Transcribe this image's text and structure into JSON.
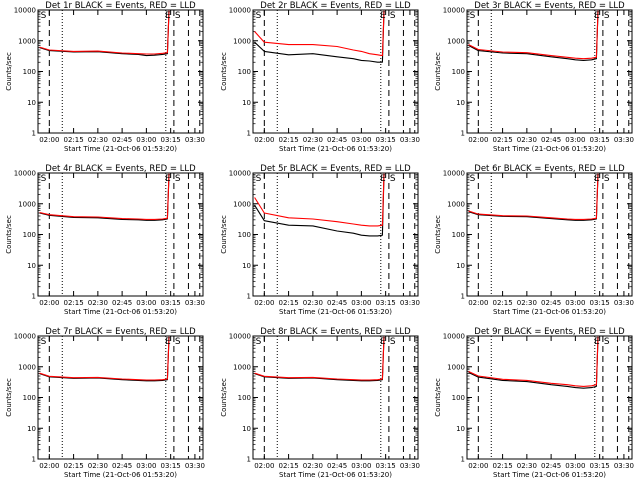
{
  "colors": {
    "events": "#000000",
    "lld": "#ff0000",
    "axes": "#000000",
    "background": "#ffffff"
  },
  "x_ticks": [
    "02:00",
    "02:15",
    "02:30",
    "02:45",
    "03:00",
    "03:15",
    "03:30"
  ],
  "y_ticks": [
    "1",
    "10",
    "100",
    "1000",
    "10000"
  ],
  "ylabel": "Counts/sec",
  "xlabel": "Start Time (21-Oct-06 01:53:20)",
  "markers": {
    "start": "S",
    "end": "E"
  },
  "chart_data": [
    {
      "type": "line",
      "title": "Det 1r BLACK = Events, RED = LLD",
      "xlabel": "Start Time (21-Oct-06 01:53:20)",
      "ylabel": "Counts/sec",
      "y_scale": "log",
      "ylim": [
        1,
        10000
      ],
      "xlim": [
        "01:53",
        "03:35"
      ],
      "x": [
        "01:54",
        "02:00",
        "02:15",
        "02:30",
        "02:45",
        "02:55",
        "03:00",
        "03:05",
        "03:10",
        "03:13",
        "03:14"
      ],
      "series": [
        {
          "name": "Events",
          "color": "#000000",
          "values": [
            600,
            480,
            430,
            440,
            380,
            360,
            330,
            340,
            360,
            380,
            9000
          ]
        },
        {
          "name": "LLD",
          "color": "#ff0000",
          "values": [
            620,
            500,
            450,
            460,
            400,
            380,
            370,
            370,
            390,
            410,
            9500
          ]
        }
      ],
      "vlines_dashed": [
        "01:53",
        "02:00",
        "03:17",
        "03:26",
        "03:33"
      ],
      "vlines_dotted": [
        "02:08",
        "03:12"
      ],
      "markers": [
        {
          "label": "S",
          "x": "03:17"
        },
        {
          "label": "E",
          "x": "03:15"
        },
        {
          "label": "S",
          "x": "01:54"
        }
      ]
    },
    {
      "type": "line",
      "title": "Det 2r BLACK = Events, RED = LLD",
      "xlabel": "Start Time (21-Oct-06 01:53:20)",
      "ylabel": "Counts/sec",
      "y_scale": "log",
      "ylim": [
        1,
        10000
      ],
      "xlim": [
        "01:53",
        "03:35"
      ],
      "x": [
        "01:54",
        "02:00",
        "02:15",
        "02:30",
        "02:45",
        "02:55",
        "03:00",
        "03:05",
        "03:10",
        "03:13",
        "03:14"
      ],
      "series": [
        {
          "name": "Events",
          "color": "#000000",
          "values": [
            900,
            450,
            350,
            380,
            300,
            260,
            230,
            220,
            200,
            200,
            9000
          ]
        },
        {
          "name": "LLD",
          "color": "#ff0000",
          "values": [
            2000,
            900,
            750,
            750,
            650,
            500,
            450,
            380,
            350,
            330,
            9500
          ]
        }
      ],
      "vlines_dashed": [
        "01:53",
        "02:00",
        "03:17",
        "03:26",
        "03:33"
      ],
      "vlines_dotted": [
        "02:08",
        "03:12"
      ],
      "markers": [
        {
          "label": "S",
          "x": "03:17"
        },
        {
          "label": "E",
          "x": "03:15"
        },
        {
          "label": "S",
          "x": "01:54"
        }
      ]
    },
    {
      "type": "line",
      "title": "Det 3r BLACK = Events, RED = LLD",
      "xlabel": "Start Time (21-Oct-06 01:53:20)",
      "ylabel": "Counts/sec",
      "y_scale": "log",
      "ylim": [
        1,
        10000
      ],
      "xlim": [
        "01:53",
        "03:35"
      ],
      "x": [
        "01:54",
        "02:00",
        "02:15",
        "02:30",
        "02:45",
        "02:55",
        "03:00",
        "03:05",
        "03:10",
        "03:13",
        "03:14"
      ],
      "series": [
        {
          "name": "Events",
          "color": "#000000",
          "values": [
            700,
            480,
            400,
            380,
            300,
            260,
            240,
            230,
            240,
            260,
            9000
          ]
        },
        {
          "name": "LLD",
          "color": "#ff0000",
          "values": [
            750,
            520,
            430,
            410,
            330,
            290,
            270,
            260,
            270,
            290,
            9500
          ]
        }
      ],
      "vlines_dashed": [
        "01:53",
        "02:00",
        "03:17",
        "03:26",
        "03:33"
      ],
      "vlines_dotted": [
        "02:08",
        "03:12"
      ],
      "markers": [
        {
          "label": "S",
          "x": "03:17"
        },
        {
          "label": "E",
          "x": "03:15"
        },
        {
          "label": "S",
          "x": "01:54"
        }
      ]
    },
    {
      "type": "line",
      "title": "Det 4r BLACK = Events, RED = LLD",
      "xlabel": "Start Time (21-Oct-06 01:53:20)",
      "ylabel": "Counts/sec",
      "y_scale": "log",
      "ylim": [
        1,
        10000
      ],
      "xlim": [
        "01:53",
        "03:35"
      ],
      "x": [
        "01:54",
        "02:00",
        "02:15",
        "02:30",
        "02:45",
        "02:55",
        "03:00",
        "03:05",
        "03:10",
        "03:13",
        "03:14"
      ],
      "series": [
        {
          "name": "Events",
          "color": "#000000",
          "values": [
            500,
            420,
            360,
            350,
            310,
            300,
            290,
            290,
            300,
            320,
            9000
          ]
        },
        {
          "name": "LLD",
          "color": "#ff0000",
          "values": [
            520,
            440,
            380,
            370,
            330,
            320,
            310,
            310,
            320,
            340,
            9500
          ]
        }
      ],
      "vlines_dashed": [
        "01:53",
        "02:00",
        "03:17",
        "03:26",
        "03:33"
      ],
      "vlines_dotted": [
        "02:08",
        "03:12"
      ],
      "markers": [
        {
          "label": "S",
          "x": "03:17"
        },
        {
          "label": "E",
          "x": "03:15"
        },
        {
          "label": "S",
          "x": "01:54"
        }
      ]
    },
    {
      "type": "line",
      "title": "Det 5r BLACK = Events, RED = LLD",
      "xlabel": "Start Time (21-Oct-06 01:53:20)",
      "ylabel": "Counts/sec",
      "y_scale": "log",
      "ylim": [
        1,
        10000
      ],
      "xlim": [
        "01:53",
        "03:35"
      ],
      "x": [
        "01:54",
        "02:00",
        "02:15",
        "02:30",
        "02:45",
        "02:55",
        "03:00",
        "03:05",
        "03:10",
        "03:13",
        "03:14"
      ],
      "series": [
        {
          "name": "Events",
          "color": "#000000",
          "values": [
            900,
            280,
            200,
            190,
            130,
            110,
            95,
            90,
            90,
            95,
            9000
          ]
        },
        {
          "name": "LLD",
          "color": "#ff0000",
          "values": [
            1600,
            500,
            350,
            320,
            260,
            220,
            200,
            190,
            190,
            200,
            9500
          ]
        }
      ],
      "vlines_dashed": [
        "01:53",
        "02:00",
        "03:17",
        "03:26",
        "03:33"
      ],
      "vlines_dotted": [
        "02:08",
        "03:12"
      ],
      "markers": [
        {
          "label": "S",
          "x": "03:17"
        },
        {
          "label": "E",
          "x": "03:15"
        },
        {
          "label": "S",
          "x": "01:54"
        }
      ]
    },
    {
      "type": "line",
      "title": "Det 6r BLACK = Events, RED = LLD",
      "xlabel": "Start Time (21-Oct-06 01:53:20)",
      "ylabel": "Counts/sec",
      "y_scale": "log",
      "ylim": [
        1,
        10000
      ],
      "xlim": [
        "01:53",
        "03:35"
      ],
      "x": [
        "01:54",
        "02:00",
        "02:15",
        "02:30",
        "02:45",
        "02:55",
        "03:00",
        "03:05",
        "03:10",
        "03:13",
        "03:14"
      ],
      "series": [
        {
          "name": "Events",
          "color": "#000000",
          "values": [
            550,
            440,
            390,
            380,
            330,
            300,
            290,
            290,
            300,
            320,
            9000
          ]
        },
        {
          "name": "LLD",
          "color": "#ff0000",
          "values": [
            580,
            460,
            410,
            400,
            350,
            320,
            310,
            310,
            320,
            340,
            9500
          ]
        }
      ],
      "vlines_dashed": [
        "01:53",
        "02:00",
        "03:17",
        "03:26",
        "03:33"
      ],
      "vlines_dotted": [
        "02:08",
        "03:12"
      ],
      "markers": [
        {
          "label": "S",
          "x": "03:17"
        },
        {
          "label": "E",
          "x": "03:15"
        },
        {
          "label": "S",
          "x": "01:54"
        }
      ]
    },
    {
      "type": "line",
      "title": "Det 7r BLACK = Events, RED = LLD",
      "xlabel": "Start Time (21-Oct-06 01:53:20)",
      "ylabel": "Counts/sec",
      "y_scale": "log",
      "ylim": [
        1,
        10000
      ],
      "xlim": [
        "01:53",
        "03:35"
      ],
      "x": [
        "01:54",
        "02:00",
        "02:15",
        "02:30",
        "02:45",
        "02:55",
        "03:00",
        "03:05",
        "03:10",
        "03:13",
        "03:14"
      ],
      "series": [
        {
          "name": "Events",
          "color": "#000000",
          "values": [
            600,
            470,
            420,
            430,
            380,
            360,
            350,
            350,
            360,
            380,
            9000
          ]
        },
        {
          "name": "LLD",
          "color": "#ff0000",
          "values": [
            620,
            490,
            440,
            450,
            400,
            380,
            370,
            370,
            380,
            400,
            9500
          ]
        }
      ],
      "vlines_dashed": [
        "01:53",
        "02:00",
        "03:17",
        "03:26",
        "03:33"
      ],
      "vlines_dotted": [
        "02:08",
        "03:12"
      ],
      "markers": [
        {
          "label": "S",
          "x": "03:17"
        },
        {
          "label": "E",
          "x": "03:15"
        },
        {
          "label": "S",
          "x": "01:54"
        }
      ]
    },
    {
      "type": "line",
      "title": "Det 8r BLACK = Events, RED = LLD",
      "xlabel": "Start Time (21-Oct-06 01:53:20)",
      "ylabel": "Counts/sec",
      "y_scale": "log",
      "ylim": [
        1,
        10000
      ],
      "xlim": [
        "01:53",
        "03:35"
      ],
      "x": [
        "01:54",
        "02:00",
        "02:15",
        "02:30",
        "02:45",
        "02:55",
        "03:00",
        "03:05",
        "03:10",
        "03:13",
        "03:14"
      ],
      "series": [
        {
          "name": "Events",
          "color": "#000000",
          "values": [
            600,
            470,
            420,
            430,
            380,
            360,
            350,
            350,
            360,
            380,
            9000
          ]
        },
        {
          "name": "LLD",
          "color": "#ff0000",
          "values": [
            620,
            490,
            440,
            450,
            400,
            380,
            370,
            370,
            380,
            400,
            9500
          ]
        }
      ],
      "vlines_dashed": [
        "01:53",
        "02:00",
        "03:17",
        "03:26",
        "03:33"
      ],
      "vlines_dotted": [
        "02:08",
        "03:12"
      ],
      "markers": [
        {
          "label": "S",
          "x": "03:17"
        },
        {
          "label": "E",
          "x": "03:15"
        },
        {
          "label": "S",
          "x": "01:54"
        }
      ]
    },
    {
      "type": "line",
      "title": "Det 9r BLACK = Events, RED = LLD",
      "xlabel": "Start Time (21-Oct-06 01:53:20)",
      "ylabel": "Counts/sec",
      "y_scale": "log",
      "ylim": [
        1,
        10000
      ],
      "xlim": [
        "01:53",
        "03:35"
      ],
      "x": [
        "01:54",
        "02:00",
        "02:15",
        "02:30",
        "02:45",
        "02:55",
        "03:00",
        "03:05",
        "03:10",
        "03:13",
        "03:14"
      ],
      "series": [
        {
          "name": "Events",
          "color": "#000000",
          "values": [
            650,
            460,
            360,
            330,
            260,
            230,
            210,
            200,
            210,
            230,
            9000
          ]
        },
        {
          "name": "LLD",
          "color": "#ff0000",
          "values": [
            700,
            500,
            390,
            360,
            290,
            260,
            240,
            230,
            240,
            260,
            9500
          ]
        }
      ],
      "vlines_dashed": [
        "01:53",
        "02:00",
        "03:17",
        "03:26",
        "03:33"
      ],
      "vlines_dotted": [
        "02:08",
        "03:12"
      ],
      "markers": [
        {
          "label": "S",
          "x": "03:17"
        },
        {
          "label": "E",
          "x": "03:15"
        },
        {
          "label": "S",
          "x": "01:54"
        }
      ]
    }
  ]
}
